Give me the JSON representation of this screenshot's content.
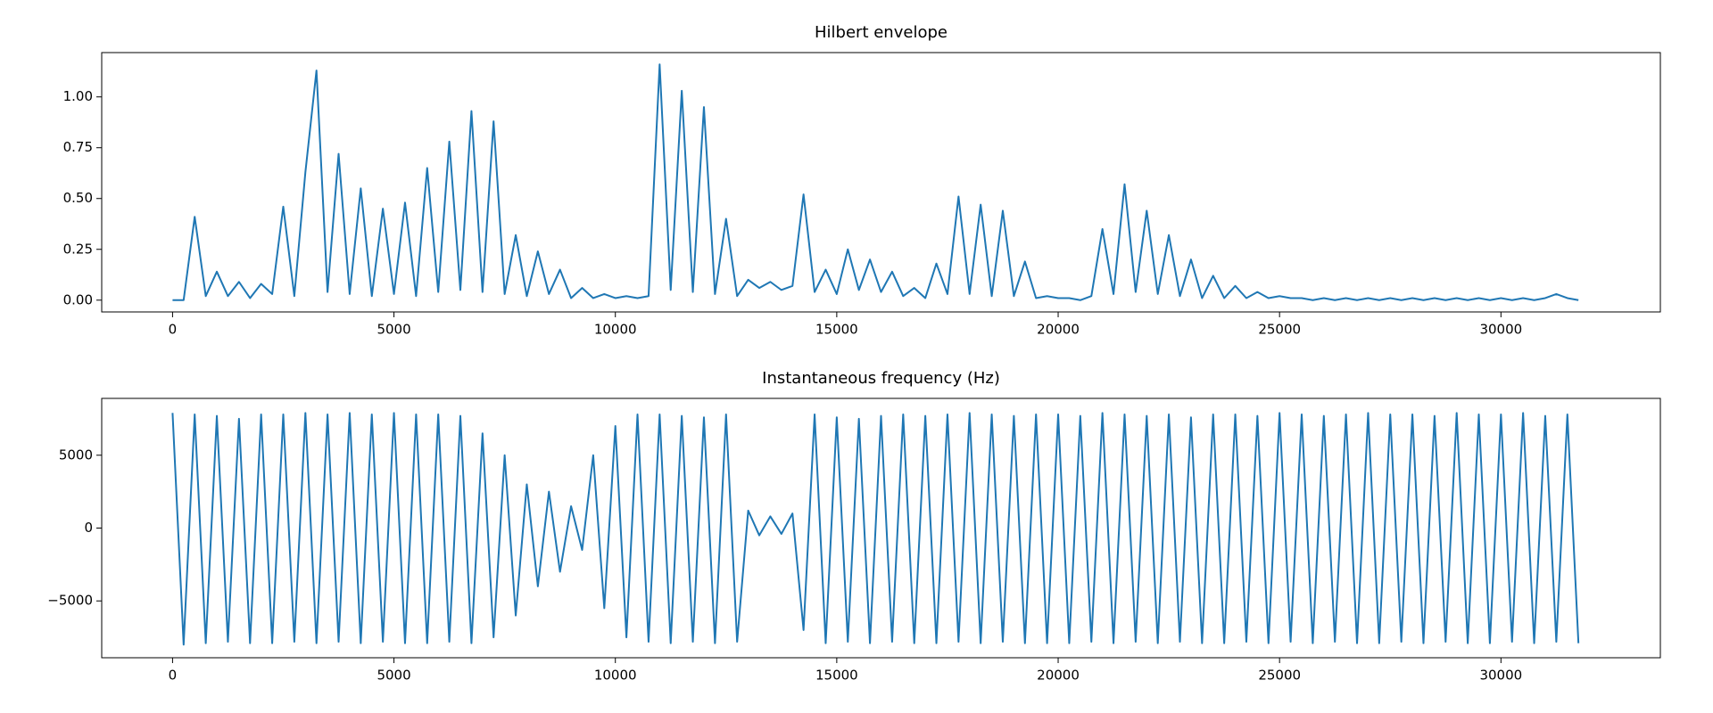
{
  "chart_data": [
    {
      "type": "line",
      "title": "Hilbert envelope",
      "color": "#1f77b4",
      "x": [
        0,
        250,
        500,
        750,
        1000,
        1250,
        1500,
        1750,
        2000,
        2250,
        2500,
        2750,
        3000,
        3250,
        3500,
        3750,
        4000,
        4250,
        4500,
        4750,
        5000,
        5250,
        5500,
        5750,
        6000,
        6250,
        6500,
        6750,
        7000,
        7250,
        7500,
        7750,
        8000,
        8250,
        8500,
        8750,
        9000,
        9250,
        9500,
        9750,
        10000,
        10250,
        10500,
        10750,
        11000,
        11250,
        11500,
        11750,
        12000,
        12250,
        12500,
        12750,
        13000,
        13250,
        13500,
        13750,
        14000,
        14250,
        14500,
        14750,
        15000,
        15250,
        15500,
        15750,
        16000,
        16250,
        16500,
        16750,
        17000,
        17250,
        17500,
        17750,
        18000,
        18250,
        18500,
        18750,
        19000,
        19250,
        19500,
        19750,
        20000,
        20250,
        20500,
        20750,
        21000,
        21250,
        21500,
        21750,
        22000,
        22250,
        22500,
        22750,
        23000,
        23250,
        23500,
        23750,
        24000,
        24250,
        24500,
        24750,
        25000,
        25250,
        25500,
        25750,
        26000,
        26250,
        26500,
        26750,
        27000,
        27250,
        27500,
        27750,
        28000,
        28250,
        28500,
        28750,
        29000,
        29250,
        29500,
        29750,
        30000,
        30250,
        30500,
        30750,
        31000,
        31250,
        31500,
        31750
      ],
      "values": [
        0.0,
        0.0,
        0.41,
        0.02,
        0.14,
        0.02,
        0.09,
        0.01,
        0.08,
        0.03,
        0.46,
        0.02,
        0.63,
        1.13,
        0.04,
        0.72,
        0.03,
        0.55,
        0.02,
        0.45,
        0.03,
        0.48,
        0.02,
        0.65,
        0.04,
        0.78,
        0.05,
        0.93,
        0.04,
        0.88,
        0.03,
        0.32,
        0.02,
        0.24,
        0.03,
        0.15,
        0.01,
        0.06,
        0.01,
        0.03,
        0.01,
        0.02,
        0.01,
        0.02,
        1.16,
        0.05,
        1.03,
        0.04,
        0.95,
        0.03,
        0.4,
        0.02,
        0.1,
        0.06,
        0.09,
        0.05,
        0.07,
        0.52,
        0.04,
        0.15,
        0.03,
        0.25,
        0.05,
        0.2,
        0.04,
        0.14,
        0.02,
        0.06,
        0.01,
        0.18,
        0.03,
        0.51,
        0.03,
        0.47,
        0.02,
        0.44,
        0.02,
        0.19,
        0.01,
        0.02,
        0.01,
        0.01,
        0.0,
        0.02,
        0.35,
        0.03,
        0.57,
        0.04,
        0.44,
        0.03,
        0.32,
        0.02,
        0.2,
        0.01,
        0.12,
        0.01,
        0.07,
        0.01,
        0.04,
        0.01,
        0.02,
        0.01,
        0.01,
        0.0,
        0.01,
        0.0,
        0.01,
        0.0,
        0.01,
        0.0,
        0.01,
        0.0,
        0.01,
        0.0,
        0.01,
        0.0,
        0.01,
        0.0,
        0.01,
        0.0,
        0.01,
        0.0,
        0.01,
        0.0,
        0.01,
        0.03,
        0.01,
        0.0
      ],
      "xlim": [
        -1600,
        33600
      ],
      "ylim": [
        -0.058,
        1.218
      ],
      "xticks": [
        0,
        5000,
        10000,
        15000,
        20000,
        25000,
        30000
      ],
      "yticks": [
        {
          "value": 0,
          "label": "0.00"
        },
        {
          "value": 0.25,
          "label": "0.25"
        },
        {
          "value": 0.5,
          "label": "0.50"
        },
        {
          "value": 0.75,
          "label": "0.75"
        },
        {
          "value": 1,
          "label": "1.00"
        }
      ]
    },
    {
      "type": "line",
      "title": "Instantaneous frequency (Hz)",
      "color": "#1f77b4",
      "x": [
        0,
        250,
        500,
        750,
        1000,
        1250,
        1500,
        1750,
        2000,
        2250,
        2500,
        2750,
        3000,
        3250,
        3500,
        3750,
        4000,
        4250,
        4500,
        4750,
        5000,
        5250,
        5500,
        5750,
        6000,
        6250,
        6500,
        6750,
        7000,
        7250,
        7500,
        7750,
        8000,
        8250,
        8500,
        8750,
        9000,
        9250,
        9500,
        9750,
        10000,
        10250,
        10500,
        10750,
        11000,
        11250,
        11500,
        11750,
        12000,
        12250,
        12500,
        12750,
        13000,
        13250,
        13500,
        13750,
        14000,
        14250,
        14500,
        14750,
        15000,
        15250,
        15500,
        15750,
        16000,
        16250,
        16500,
        16750,
        17000,
        17250,
        17500,
        17750,
        18000,
        18250,
        18500,
        18750,
        19000,
        19250,
        19500,
        19750,
        20000,
        20250,
        20500,
        20750,
        21000,
        21250,
        21500,
        21750,
        22000,
        22250,
        22500,
        22750,
        23000,
        23250,
        23500,
        23750,
        24000,
        24250,
        24500,
        24750,
        25000,
        25250,
        25500,
        25750,
        26000,
        26250,
        26500,
        26750,
        27000,
        27250,
        27500,
        27750,
        28000,
        28250,
        28500,
        28750,
        29000,
        29250,
        29500,
        29750,
        30000,
        30250,
        30500,
        30750,
        31000,
        31250,
        31500,
        31750
      ],
      "values": [
        7900,
        -8000,
        7800,
        -7900,
        7700,
        -7800,
        7500,
        -7900,
        7800,
        -7900,
        7800,
        -7800,
        7900,
        -7900,
        7800,
        -7800,
        7900,
        -7900,
        7800,
        -7800,
        7900,
        -7900,
        7800,
        -7900,
        7800,
        -7800,
        7700,
        -7900,
        6500,
        -7500,
        5000,
        -6000,
        3000,
        -4000,
        2500,
        -3000,
        1500,
        -1500,
        5000,
        -5500,
        7000,
        -7500,
        7800,
        -7800,
        7800,
        -7900,
        7700,
        -7800,
        7600,
        -7900,
        7800,
        -7800,
        1200,
        -500,
        800,
        -400,
        1000,
        -7000,
        7800,
        -7900,
        7600,
        -7800,
        7500,
        -7900,
        7700,
        -7800,
        7800,
        -7900,
        7700,
        -7900,
        7800,
        -7800,
        7900,
        -7900,
        7800,
        -7800,
        7700,
        -7900,
        7800,
        -7900,
        7800,
        -7900,
        7700,
        -7800,
        7900,
        -7900,
        7800,
        -7800,
        7700,
        -7900,
        7800,
        -7800,
        7600,
        -7900,
        7800,
        -7900,
        7800,
        -7800,
        7700,
        -7900,
        7900,
        -7800,
        7800,
        -7900,
        7700,
        -7800,
        7800,
        -7900,
        7900,
        -7900,
        7800,
        -7800,
        7800,
        -7900,
        7700,
        -7800,
        7900,
        -7900,
        7800,
        -7900,
        7800,
        -7800,
        7900,
        -7900,
        7700,
        -7800,
        7800,
        -7900
      ],
      "xlim": [
        -1600,
        33600
      ],
      "ylim": [
        -8900,
        8900
      ],
      "xticks": [
        0,
        5000,
        10000,
        15000,
        20000,
        25000,
        30000
      ],
      "yticks": [
        {
          "value": -5000,
          "label": "−5000"
        },
        0,
        5000
      ]
    }
  ]
}
